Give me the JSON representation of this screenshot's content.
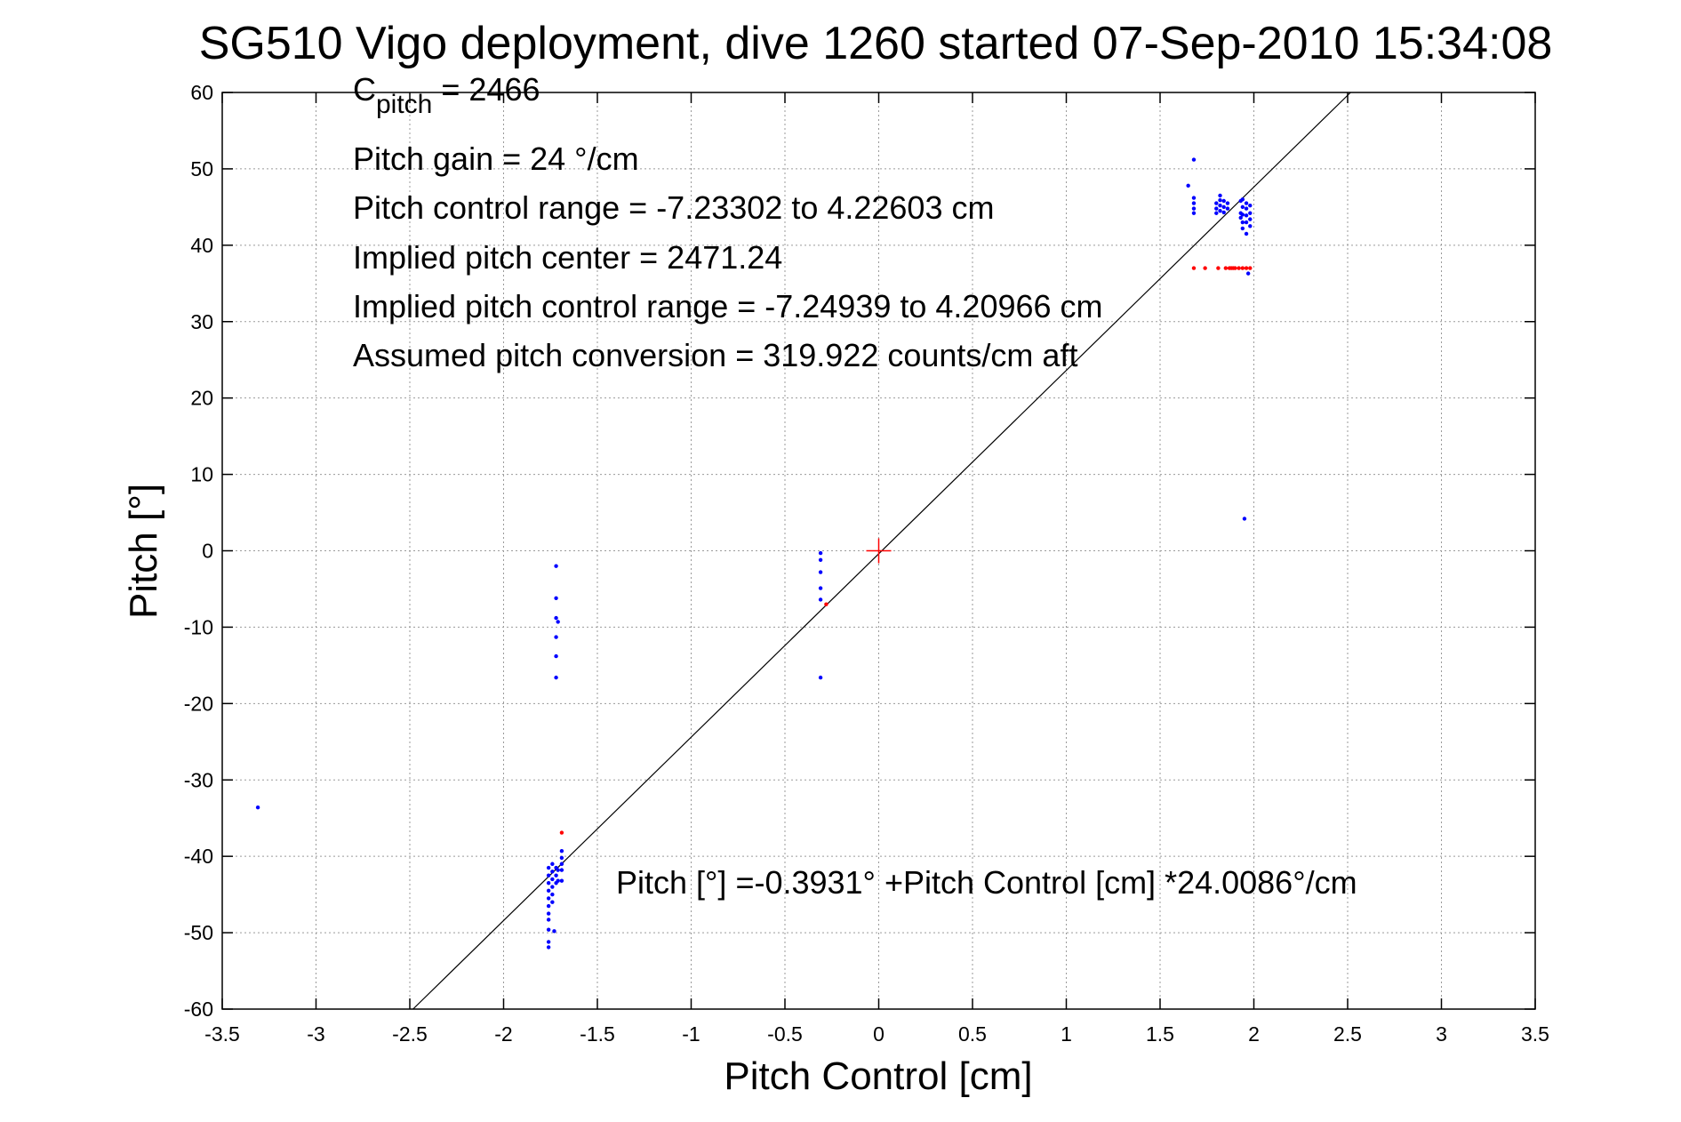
{
  "title": "SG510 Vigo deployment, dive 1260 started 07-Sep-2010 15:34:08",
  "colors": {
    "background": "#ffffff",
    "grid": "#9a9a9a",
    "fit_line": "#000000",
    "points_blue": "#0000ff",
    "points_red": "#ff0000",
    "center_marker": "#ff0000"
  },
  "annotations": {
    "cpitch": {
      "base": "C",
      "sub": "pitch",
      "rest": " = 2466"
    },
    "lines": [
      "Pitch gain = 24 °/cm",
      "Pitch control range = -7.23302 to 4.22603 cm",
      "Implied pitch center = 2471.24",
      "Implied pitch control range = -7.24939 to 4.20966 cm",
      "Assumed pitch conversion = 319.922 counts/cm aft"
    ],
    "fit_equation": "Pitch [°] =-0.3931° +Pitch Control [cm] *24.0086°/cm"
  },
  "chart_data": {
    "type": "scatter",
    "title": "SG510 Vigo deployment, dive 1260 started 07-Sep-2010 15:34:08",
    "xlabel": "Pitch Control [cm]",
    "ylabel": "Pitch [°]",
    "xlim": [
      -3.5,
      3.5
    ],
    "ylim": [
      -60,
      60
    ],
    "xticks": [
      -3.5,
      -3,
      -2.5,
      -2,
      -1.5,
      -1,
      -0.5,
      0,
      0.5,
      1,
      1.5,
      2,
      2.5,
      3,
      3.5
    ],
    "xtick_labels": [
      "-3.5",
      "-3",
      "-2.5",
      "-2",
      "-1.5",
      "-1",
      "-0.5",
      "0",
      "0.5",
      "1",
      "1.5",
      "2",
      "2.5",
      "3",
      "3.5"
    ],
    "yticks": [
      -60,
      -50,
      -40,
      -30,
      -20,
      -10,
      0,
      10,
      20,
      30,
      40,
      50,
      60
    ],
    "ytick_labels": [
      "-60",
      "-50",
      "-40",
      "-30",
      "-20",
      "-10",
      "0",
      "10",
      "20",
      "30",
      "40",
      "50",
      "60"
    ],
    "grid": true,
    "fit_line": {
      "intercept": -0.3931,
      "slope": 24.0086
    },
    "center_marker": {
      "x": 0,
      "y": 0
    },
    "series": [
      {
        "color": "blue",
        "points": [
          [
            -3.31,
            -33.6
          ],
          [
            -1.72,
            -2.0
          ],
          [
            -1.72,
            -6.2
          ],
          [
            -1.72,
            -8.8
          ],
          [
            -1.71,
            -9.3
          ],
          [
            -1.72,
            -11.3
          ],
          [
            -1.72,
            -13.8
          ],
          [
            -1.72,
            -16.6
          ],
          [
            -1.76,
            -41.5
          ],
          [
            -1.76,
            -42.5
          ],
          [
            -1.76,
            -43.5
          ],
          [
            -1.76,
            -44.5
          ],
          [
            -1.76,
            -45.5
          ],
          [
            -1.76,
            -46.5
          ],
          [
            -1.76,
            -47.5
          ],
          [
            -1.76,
            -48.3
          ],
          [
            -1.76,
            -49.6
          ],
          [
            -1.76,
            -51.2
          ],
          [
            -1.76,
            -51.9
          ],
          [
            -1.74,
            -41.0
          ],
          [
            -1.74,
            -42.0
          ],
          [
            -1.74,
            -43.0
          ],
          [
            -1.74,
            -44.0
          ],
          [
            -1.74,
            -45.0
          ],
          [
            -1.74,
            -46.0
          ],
          [
            -1.73,
            -49.8
          ],
          [
            -1.72,
            -41.5
          ],
          [
            -1.72,
            -42.5
          ],
          [
            -1.72,
            -43.5
          ],
          [
            -1.71,
            -41.8
          ],
          [
            -1.71,
            -43.2
          ],
          [
            -1.69,
            -39.3
          ],
          [
            -1.69,
            -40.2
          ],
          [
            -1.69,
            -41.0
          ],
          [
            -1.69,
            -41.8
          ],
          [
            -1.69,
            -43.2
          ],
          [
            -0.31,
            -0.3
          ],
          [
            -0.31,
            -1.2
          ],
          [
            -0.31,
            -2.8
          ],
          [
            -0.31,
            -4.9
          ],
          [
            -0.31,
            -6.4
          ],
          [
            -0.31,
            -16.6
          ],
          [
            1.65,
            47.8
          ],
          [
            1.68,
            51.2
          ],
          [
            1.68,
            46.2
          ],
          [
            1.68,
            45.5
          ],
          [
            1.68,
            44.8
          ],
          [
            1.68,
            44.2
          ],
          [
            1.8,
            45.5
          ],
          [
            1.8,
            44.8
          ],
          [
            1.8,
            44.2
          ],
          [
            1.82,
            46.5
          ],
          [
            1.82,
            45.9
          ],
          [
            1.82,
            45.2
          ],
          [
            1.82,
            44.5
          ],
          [
            1.84,
            45.8
          ],
          [
            1.84,
            45.0
          ],
          [
            1.84,
            44.3
          ],
          [
            1.86,
            45.5
          ],
          [
            1.86,
            44.8
          ],
          [
            1.93,
            45.8
          ],
          [
            1.93,
            44.2
          ],
          [
            1.93,
            43.6
          ],
          [
            1.94,
            46.0
          ],
          [
            1.94,
            45.0
          ],
          [
            1.94,
            44.0
          ],
          [
            1.94,
            43.0
          ],
          [
            1.94,
            42.2
          ],
          [
            1.96,
            45.5
          ],
          [
            1.96,
            44.8
          ],
          [
            1.96,
            43.9
          ],
          [
            1.96,
            43.0
          ],
          [
            1.96,
            41.5
          ],
          [
            1.98,
            45.2
          ],
          [
            1.98,
            44.2
          ],
          [
            1.98,
            43.4
          ],
          [
            1.98,
            42.5
          ],
          [
            1.97,
            36.3
          ],
          [
            1.95,
            4.2
          ]
        ]
      },
      {
        "color": "red",
        "points": [
          [
            -1.69,
            -36.9
          ],
          [
            -0.28,
            -7.0
          ],
          [
            1.68,
            37.0
          ],
          [
            1.74,
            37.0
          ],
          [
            1.81,
            37.0
          ],
          [
            1.85,
            37.0
          ],
          [
            1.87,
            37.0
          ],
          [
            1.88,
            37.0
          ],
          [
            1.89,
            37.0
          ],
          [
            1.9,
            37.0
          ],
          [
            1.92,
            37.0
          ],
          [
            1.94,
            37.0
          ],
          [
            1.96,
            37.0
          ],
          [
            1.98,
            37.0
          ]
        ]
      }
    ]
  }
}
